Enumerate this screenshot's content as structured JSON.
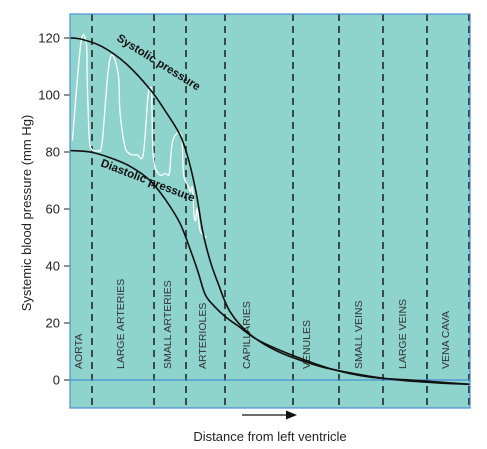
{
  "chart_data": {
    "type": "line",
    "title": "",
    "ylabel": "Systemic blood pressure (mm Hg)",
    "xlabel": "Distance from left ventricle",
    "ylim": [
      -10,
      128
    ],
    "y_ticks": [
      0,
      20,
      40,
      60,
      80,
      100,
      120
    ],
    "colors": {
      "background": "#8ed3cc",
      "curve": "#111111",
      "pulse": "#ffffff",
      "zero_line": "#4a8fd6",
      "border": "#4a8fd6"
    },
    "regions": [
      "AORTA",
      "LARGE ARTERIES",
      "SMALL ARTERIES",
      "ARTERIOLES",
      "CAPILLARIES",
      "VENULES",
      "SMALL VEINS",
      "LARGE VEINS",
      "VENA CAVA"
    ],
    "series": [
      {
        "name": "Systolic pressure",
        "x": [
          0,
          3,
          8,
          14,
          20,
          24,
          27.5,
          29.5,
          31.5,
          33.2,
          35,
          37,
          40,
          45,
          52,
          62,
          72,
          82,
          92,
          100
        ],
        "y": [
          120,
          119.5,
          117,
          111,
          102,
          94,
          86,
          78,
          66,
          52,
          42,
          34,
          24,
          16,
          10,
          5,
          2,
          0,
          -1,
          -1.5
        ]
      },
      {
        "name": "Diastolic pressure",
        "x": [
          0,
          5,
          10,
          15,
          20,
          24,
          27.5,
          30,
          32,
          33.8,
          36,
          39,
          42,
          47,
          55,
          65,
          75,
          85,
          95,
          100
        ],
        "y": [
          80.5,
          80,
          78,
          75,
          70,
          63,
          55,
          46,
          38,
          30,
          26,
          22,
          19,
          14,
          9,
          4,
          1,
          0,
          -1,
          -1.5
        ]
      }
    ],
    "pulse_wave": {
      "name": "pressure oscillation",
      "x": [
        0.6,
        2.7,
        4.1,
        4.3,
        4.8,
        5.4,
        6.2,
        7.0,
        8.0,
        9.5,
        10.6,
        12.1,
        12.5,
        13.7,
        14.8,
        15.7,
        16.8,
        18.3,
        19.4,
        19.8,
        20.4,
        20.5,
        20.9,
        22.4,
        23.8,
        24.4,
        24.9,
        25.7,
        27.8,
        28.4,
        29.6,
        30.1,
        30.6,
        31.0,
        31.4,
        31.8,
        32.4,
        33.2,
        34.1
      ],
      "y": [
        84,
        118,
        118,
        105,
        85,
        81,
        80.5,
        80.5,
        83,
        108,
        114,
        107,
        94,
        82,
        79.5,
        79,
        79,
        79,
        98,
        102,
        102,
        94,
        77,
        72,
        72.5,
        72,
        73,
        84,
        86,
        72,
        68,
        66,
        67.5,
        58,
        56,
        60,
        53,
        51,
        50
      ]
    }
  }
}
